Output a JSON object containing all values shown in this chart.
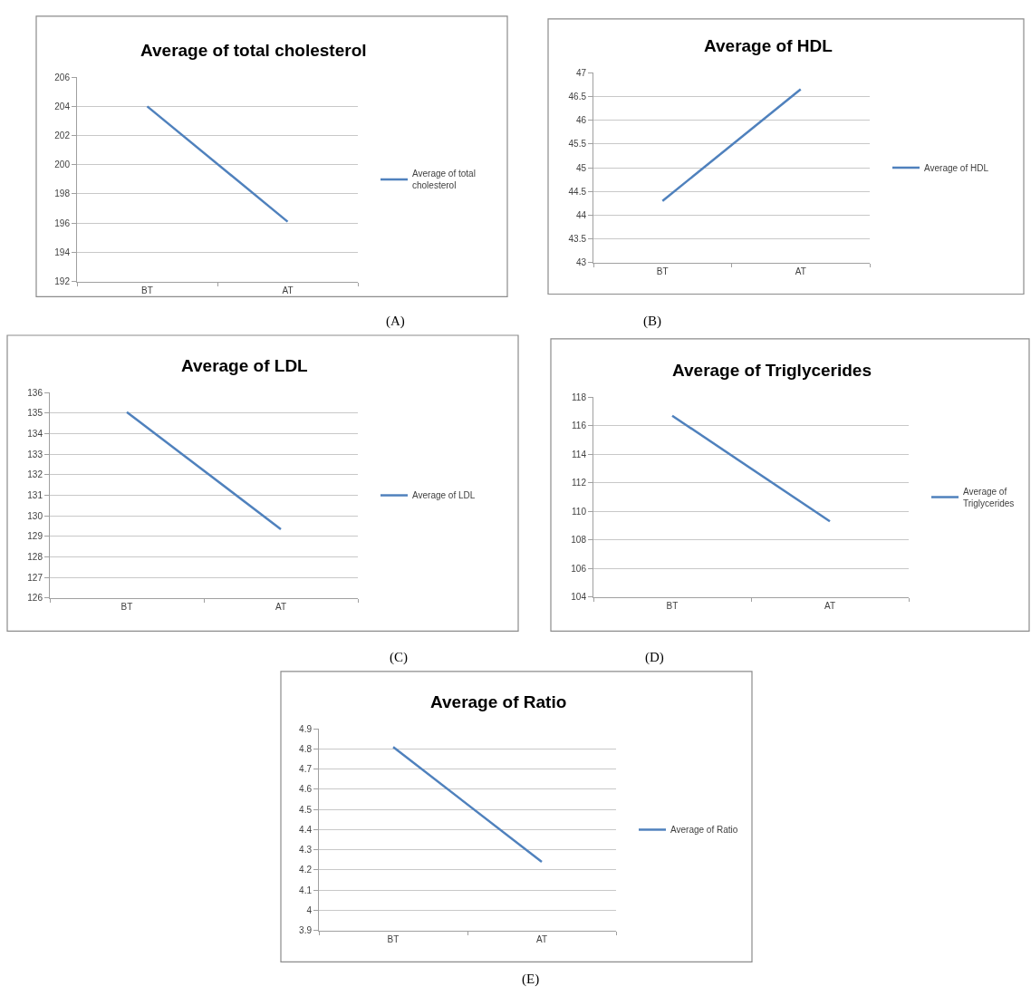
{
  "chart_data": [
    {
      "type": "line",
      "title": "Average of total cholesterol",
      "categories": [
        "BT",
        "AT"
      ],
      "series": [
        {
          "name": "Average of total cholesterol",
          "color": "#4f81bd",
          "values": [
            204,
            196.1
          ]
        }
      ],
      "ylim": [
        192,
        206
      ],
      "yticks": [
        192,
        194,
        196,
        198,
        200,
        202,
        204,
        206
      ],
      "grid": "y",
      "legend": "right",
      "marker": "none",
      "annotations": [
        "(A)"
      ]
    },
    {
      "type": "line",
      "title": "Average of HDL",
      "categories": [
        "BT",
        "AT"
      ],
      "series": [
        {
          "name": "Average of HDL",
          "color": "#4f81bd",
          "values": [
            44.3,
            46.65
          ]
        }
      ],
      "ylim": [
        43,
        47
      ],
      "yticks": [
        43,
        43.5,
        44,
        44.5,
        45,
        45.5,
        46,
        46.5,
        47
      ],
      "grid": "y",
      "legend": "right",
      "marker": "none",
      "annotations": [
        "(B)"
      ]
    },
    {
      "type": "line",
      "title": "Average of LDL",
      "categories": [
        "BT",
        "AT"
      ],
      "series": [
        {
          "name": "Average of LDL",
          "color": "#4f81bd",
          "values": [
            135.05,
            129.35
          ]
        }
      ],
      "ylim": [
        126,
        136
      ],
      "yticks": [
        126,
        127,
        128,
        129,
        130,
        131,
        132,
        133,
        134,
        135,
        136
      ],
      "grid": "y",
      "legend": "right",
      "marker": "none",
      "annotations": [
        "(C)"
      ]
    },
    {
      "type": "line",
      "title": "Average of Triglycerides",
      "categories": [
        "BT",
        "AT"
      ],
      "series": [
        {
          "name": "Average of Triglycerides",
          "color": "#4f81bd",
          "values": [
            116.7,
            109.3
          ]
        }
      ],
      "ylim": [
        104,
        118
      ],
      "yticks": [
        104,
        106,
        108,
        110,
        112,
        114,
        116,
        118
      ],
      "grid": "y",
      "legend": "right",
      "marker": "none",
      "annotations": [
        "(D)"
      ]
    },
    {
      "type": "line",
      "title": "Average of Ratio",
      "categories": [
        "BT",
        "AT"
      ],
      "series": [
        {
          "name": "Average of Ratio",
          "color": "#4f81bd",
          "values": [
            4.81,
            4.24
          ]
        }
      ],
      "ylim": [
        3.9,
        4.9
      ],
      "yticks": [
        3.9,
        4,
        4.1,
        4.2,
        4.3,
        4.4,
        4.5,
        4.6,
        4.7,
        4.8,
        4.9
      ],
      "grid": "y",
      "legend": "right",
      "marker": "none",
      "annotations": [
        "(E)"
      ]
    }
  ]
}
